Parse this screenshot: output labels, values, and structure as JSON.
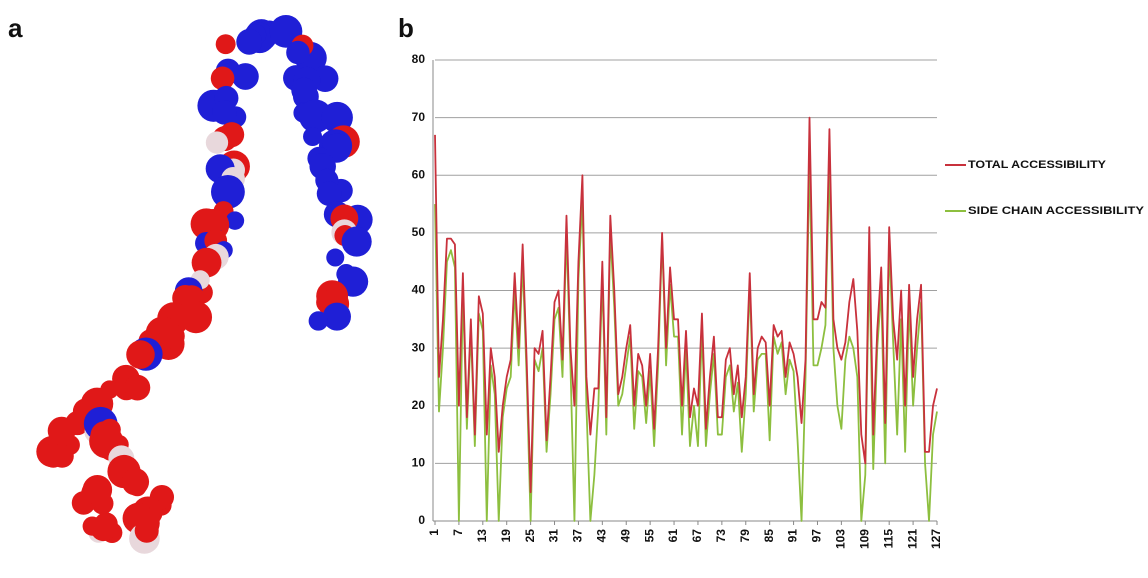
{
  "panels": {
    "a": "a",
    "b": "b"
  },
  "chart_data": {
    "type": "line",
    "x": [
      1,
      2,
      3,
      4,
      5,
      6,
      7,
      8,
      9,
      10,
      11,
      12,
      13,
      14,
      15,
      16,
      17,
      18,
      19,
      20,
      21,
      22,
      23,
      24,
      25,
      26,
      27,
      28,
      29,
      30,
      31,
      32,
      33,
      34,
      35,
      36,
      37,
      38,
      39,
      40,
      41,
      42,
      43,
      44,
      45,
      46,
      47,
      48,
      49,
      50,
      51,
      52,
      53,
      54,
      55,
      56,
      57,
      58,
      59,
      60,
      61,
      62,
      63,
      64,
      65,
      66,
      67,
      68,
      69,
      70,
      71,
      72,
      73,
      74,
      75,
      76,
      77,
      78,
      79,
      80,
      81,
      82,
      83,
      84,
      85,
      86,
      87,
      88,
      89,
      90,
      91,
      92,
      93,
      94,
      95,
      96,
      97,
      98,
      99,
      100,
      101,
      102,
      103,
      104,
      105,
      106,
      107,
      108,
      109,
      110,
      111,
      112,
      113,
      114,
      115,
      116,
      117,
      118,
      119,
      120,
      121,
      122,
      123,
      124,
      125,
      126,
      127
    ],
    "series": [
      {
        "name": "TOTAL ACCESSIBILITY",
        "color": "#c8313c",
        "values": [
          67,
          25,
          35,
          49,
          49,
          48,
          20,
          43,
          18,
          35,
          15,
          39,
          36,
          15,
          30,
          25,
          12,
          20,
          25,
          28,
          43,
          30,
          48,
          28,
          5,
          30,
          29,
          33,
          14,
          25,
          38,
          40,
          28,
          53,
          30,
          20,
          45,
          60,
          25,
          15,
          23,
          23,
          45,
          18,
          53,
          40,
          22,
          25,
          30,
          34,
          20,
          29,
          27,
          20,
          29,
          16,
          30,
          50,
          30,
          44,
          35,
          35,
          20,
          33,
          18,
          23,
          20,
          36,
          16,
          25,
          32,
          18,
          18,
          28,
          30,
          22,
          27,
          18,
          25,
          43,
          22,
          30,
          32,
          31,
          20,
          34,
          32,
          33,
          25,
          31,
          29,
          25,
          17,
          28,
          70,
          35,
          35,
          38,
          37,
          68,
          35,
          30,
          28,
          31,
          38,
          42,
          33,
          15,
          10,
          51,
          15,
          33,
          44,
          17,
          51,
          35,
          28,
          40,
          20,
          41,
          25,
          35,
          41,
          12,
          12,
          20,
          23
        ]
      },
      {
        "name": "SIDE CHAIN ACCESSIBILITY",
        "color": "#8dbf3f",
        "values": [
          55,
          19,
          30,
          45,
          47,
          44,
          0,
          40,
          16,
          33,
          13,
          36,
          33,
          0,
          27,
          22,
          0,
          18,
          23,
          25,
          40,
          27,
          45,
          25,
          0,
          28,
          26,
          30,
          12,
          22,
          35,
          37,
          25,
          50,
          27,
          0,
          42,
          56,
          20,
          0,
          8,
          20,
          42,
          15,
          50,
          37,
          20,
          22,
          27,
          32,
          16,
          26,
          25,
          17,
          26,
          13,
          27,
          49,
          27,
          41,
          32,
          32,
          15,
          30,
          13,
          20,
          13,
          33,
          13,
          22,
          29,
          15,
          15,
          25,
          27,
          19,
          24,
          12,
          22,
          41,
          19,
          28,
          29,
          29,
          14,
          32,
          29,
          31,
          22,
          28,
          26,
          14,
          0,
          25,
          63,
          27,
          27,
          30,
          34,
          62,
          30,
          20,
          16,
          28,
          32,
          30,
          25,
          0,
          8,
          45,
          9,
          30,
          40,
          10,
          48,
          31,
          15,
          35,
          12,
          38,
          20,
          30,
          38,
          10,
          0,
          15,
          19
        ]
      }
    ],
    "xlim": [
      1,
      127
    ],
    "xticks": [
      1,
      7,
      13,
      19,
      25,
      31,
      37,
      43,
      49,
      55,
      61,
      67,
      73,
      79,
      85,
      91,
      97,
      103,
      109,
      115,
      121,
      127
    ],
    "ylim": [
      0,
      80
    ],
    "yticks": [
      0,
      10,
      20,
      30,
      40,
      50,
      60,
      70,
      80
    ],
    "grid": true
  }
}
